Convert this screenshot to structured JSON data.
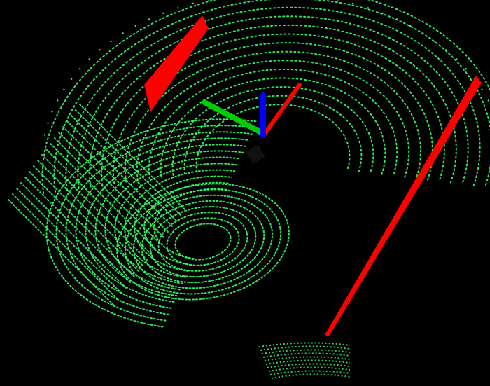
{
  "viewer": {
    "background_color": "#000000",
    "point_cloud": {
      "name": "lidar-scan",
      "color": "#33ff66",
      "pattern": "concentric-rings"
    },
    "markers": [
      {
        "name": "wall-plane-left",
        "color": "#ff0000"
      },
      {
        "name": "wall-plane-right",
        "color": "#ff0000"
      }
    ],
    "sensor": {
      "name": "sensor-body",
      "color": "#111111"
    },
    "axes": {
      "x_color": "#ff0000",
      "y_color": "#00cc00",
      "z_color": "#0000ff"
    }
  }
}
